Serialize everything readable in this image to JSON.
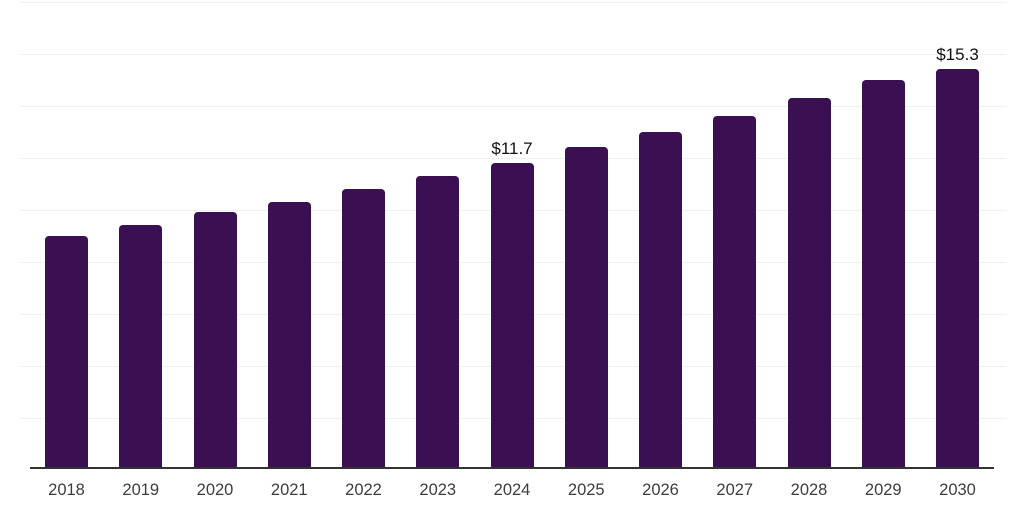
{
  "chart_data": {
    "type": "bar",
    "title": "",
    "xlabel": "",
    "ylabel": "",
    "categories": [
      "2018",
      "2019",
      "2020",
      "2021",
      "2022",
      "2023",
      "2024",
      "2025",
      "2026",
      "2027",
      "2028",
      "2029",
      "2030"
    ],
    "values": [
      8.9,
      9.3,
      9.8,
      10.2,
      10.7,
      11.2,
      11.7,
      12.3,
      12.9,
      13.5,
      14.2,
      14.9,
      15.3
    ],
    "point_labels": [
      "",
      "",
      "",
      "",
      "",
      "",
      "$11.7",
      "",
      "",
      "",
      "",
      "",
      "$15.3"
    ],
    "ylim": [
      0,
      18
    ],
    "gridline_step": 2,
    "grid": "horizontal",
    "y_tick_labels_visible": false,
    "legend": null
  },
  "colors": {
    "background": "#ffffff",
    "bar": "#3B1052",
    "gridline": "#f0f0f0",
    "axis_line": "#333333",
    "tick_label": "#3d3d3d",
    "value_label": "#111111"
  }
}
